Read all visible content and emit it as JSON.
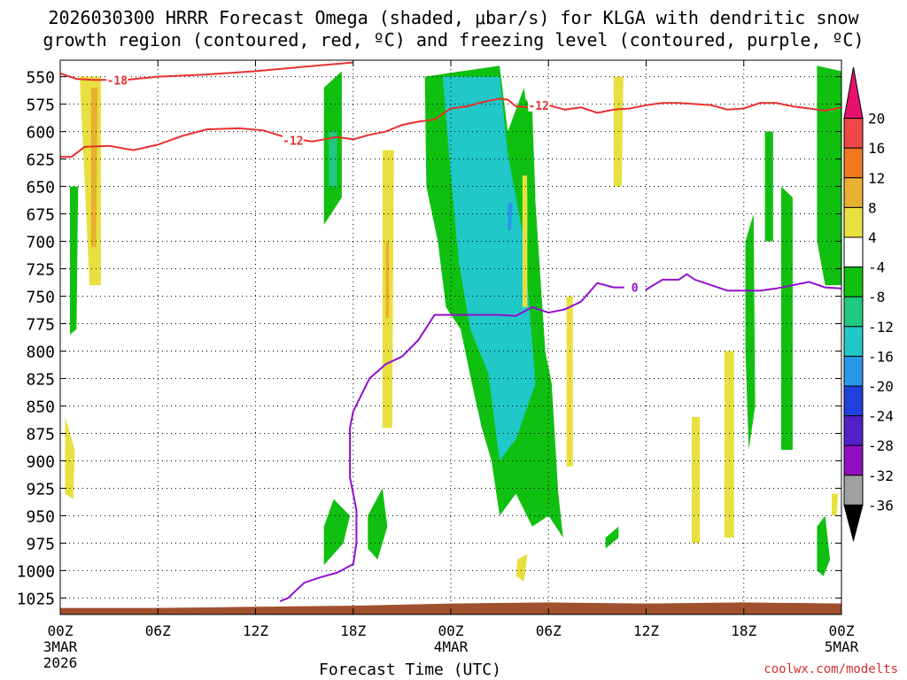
{
  "title": "2026030300 HRRR Forecast Omega (shaded, μbar/s) for KLGA with dendritic snow\ngrowth region (contoured, red, ºC) and freezing level (contoured, purple, ºC)",
  "credit": "coolwx.com/modelts",
  "chart_data": {
    "type": "heatmap",
    "title": "2026030300 HRRR Forecast Omega (shaded, μbar/s) for KLGA with dendritic snow growth region (contoured, red, ºC) and freezing level (contoured, purple, ºC)",
    "xlabel": "Forecast Time (UTC)",
    "ylabel": "",
    "x_ticks": [
      {
        "hour": 0,
        "label": "00Z",
        "sub": "3MAR",
        "sub2": "2026"
      },
      {
        "hour": 6,
        "label": "06Z"
      },
      {
        "hour": 12,
        "label": "12Z"
      },
      {
        "hour": 18,
        "label": "18Z"
      },
      {
        "hour": 24,
        "label": "00Z",
        "sub": "4MAR"
      },
      {
        "hour": 30,
        "label": "06Z"
      },
      {
        "hour": 36,
        "label": "12Z"
      },
      {
        "hour": 42,
        "label": "18Z"
      },
      {
        "hour": 48,
        "label": "00Z",
        "sub": "5MAR"
      }
    ],
    "xlim": [
      0,
      48
    ],
    "y_ticks": [
      550,
      575,
      600,
      625,
      650,
      675,
      700,
      725,
      750,
      775,
      800,
      825,
      850,
      875,
      900,
      925,
      950,
      975,
      1000,
      1025
    ],
    "ylim": [
      535,
      1040
    ],
    "grid": true,
    "colorbar": {
      "labels": [
        "20",
        "16",
        "12",
        "8",
        "4",
        "-4",
        "-8",
        "-12",
        "-16",
        "-20",
        "-24",
        "-28",
        "-32",
        "-36"
      ],
      "colors": [
        "#e8106e",
        "#f04848",
        "#f07820",
        "#e8b030",
        "#e8e040",
        "#ffffff",
        "#10c010",
        "#20c880",
        "#20c8c8",
        "#2898e8",
        "#2040e0",
        "#5020c8",
        "#9010c0",
        "#a0a0a0",
        "#000000"
      ]
    },
    "contours": {
      "dendritic_red": [
        {
          "label": "-18",
          "points": [
            [
              0,
              547
            ],
            [
              1,
              552
            ],
            [
              2,
              553
            ],
            [
              4,
              553
            ],
            [
              6,
              550
            ],
            [
              9,
              548
            ],
            [
              12,
              545
            ],
            [
              15,
              541
            ],
            [
              18,
              537
            ]
          ]
        },
        {
          "label": "-12",
          "points": [
            [
              0,
              623
            ],
            [
              0.7,
              623
            ],
            [
              1.5,
              614
            ],
            [
              3,
              613
            ],
            [
              4.5,
              617
            ],
            [
              6,
              612
            ],
            [
              7.5,
              604
            ],
            [
              9,
              598
            ],
            [
              11,
              597
            ],
            [
              12.5,
              599
            ],
            [
              14,
              606
            ],
            [
              15.5,
              609
            ],
            [
              17,
              605
            ],
            [
              18,
              607
            ],
            [
              19,
              603
            ],
            [
              20,
              600
            ],
            [
              21,
              594
            ],
            [
              22,
              591
            ],
            [
              23,
              589
            ],
            [
              24,
              579
            ],
            [
              25,
              577
            ],
            [
              26,
              573
            ],
            [
              27,
              570
            ],
            [
              27.5,
              571
            ],
            [
              28,
              577
            ],
            [
              29,
              578
            ],
            [
              29.5,
              575
            ],
            [
              30,
              576
            ],
            [
              31,
              580
            ],
            [
              32,
              578
            ],
            [
              33,
              583
            ],
            [
              34,
              580
            ],
            [
              35,
              579
            ],
            [
              36,
              576
            ],
            [
              37,
              574
            ],
            [
              38,
              574
            ],
            [
              40,
              576
            ],
            [
              41,
              580
            ],
            [
              42,
              579
            ],
            [
              43,
              574
            ],
            [
              44,
              574
            ],
            [
              45,
              577
            ],
            [
              46,
              579
            ],
            [
              47,
              581
            ],
            [
              48,
              578
            ]
          ]
        }
      ],
      "freezing_purple": [
        {
          "label": "0",
          "points": [
            [
              13.5,
              1028
            ],
            [
              14,
              1025
            ],
            [
              14.5,
              1018
            ],
            [
              15,
              1011
            ],
            [
              16,
              1006
            ],
            [
              17,
              1002
            ],
            [
              18,
              994
            ],
            [
              18.2,
              975
            ],
            [
              18.2,
              945
            ],
            [
              17.8,
              915
            ],
            [
              17.8,
              870
            ],
            [
              18,
              855
            ],
            [
              19,
              825
            ],
            [
              20,
              812
            ],
            [
              21,
              805
            ],
            [
              22,
              790
            ],
            [
              23,
              767
            ],
            [
              24,
              767
            ],
            [
              27,
              767
            ],
            [
              28,
              768
            ],
            [
              29,
              760
            ],
            [
              30,
              765
            ],
            [
              31,
              762
            ],
            [
              32,
              755
            ],
            [
              33,
              738
            ],
            [
              34,
              742
            ],
            [
              35,
              742
            ],
            [
              36,
              744
            ],
            [
              37,
              735
            ],
            [
              38,
              735
            ],
            [
              38.5,
              730
            ],
            [
              39,
              735
            ],
            [
              40,
              740
            ],
            [
              41,
              745
            ],
            [
              42,
              745
            ],
            [
              43,
              745
            ],
            [
              44,
              743
            ],
            [
              45,
              740
            ],
            [
              46,
              737
            ],
            [
              47,
              742
            ],
            [
              48,
              743
            ]
          ]
        }
      ]
    },
    "shading": [
      {
        "value": 6,
        "t": [
          [
            1.2,
            550
          ],
          [
            2.5,
            550
          ],
          [
            2.5,
            740
          ],
          [
            1.8,
            740
          ]
        ]
      },
      {
        "value": 10,
        "t": [
          [
            1.9,
            560
          ],
          [
            2.3,
            560
          ],
          [
            2.2,
            705
          ],
          [
            1.9,
            705
          ]
        ]
      },
      {
        "value": 6,
        "t": [
          [
            0.3,
            860
          ],
          [
            0.9,
            890
          ],
          [
            0.8,
            935
          ],
          [
            0.3,
            930
          ]
        ]
      },
      {
        "value": -6,
        "t": [
          [
            0.6,
            650
          ],
          [
            1.1,
            650
          ],
          [
            1.0,
            780
          ],
          [
            0.6,
            785
          ]
        ]
      },
      {
        "value": 6,
        "t": [
          [
            19.8,
            617
          ],
          [
            20.5,
            617
          ],
          [
            20.4,
            870
          ],
          [
            19.8,
            870
          ]
        ]
      },
      {
        "value": 10,
        "t": [
          [
            20.0,
            700
          ],
          [
            20.2,
            700
          ],
          [
            20.2,
            770
          ],
          [
            20.0,
            770
          ]
        ]
      },
      {
        "value": -6,
        "t": [
          [
            16.2,
            560
          ],
          [
            17.3,
            545
          ],
          [
            17.3,
            660
          ],
          [
            16.2,
            685
          ]
        ]
      },
      {
        "value": -10,
        "t": [
          [
            16.5,
            600
          ],
          [
            17.0,
            600
          ],
          [
            17.0,
            650
          ],
          [
            16.5,
            650
          ]
        ]
      },
      {
        "value": -6,
        "t": [
          [
            16.2,
            960
          ],
          [
            16.8,
            935
          ],
          [
            17.8,
            950
          ],
          [
            17.4,
            975
          ],
          [
            16.2,
            995
          ]
        ]
      },
      {
        "value": -6,
        "t": [
          [
            18.9,
            950
          ],
          [
            19.8,
            925
          ],
          [
            20.1,
            960
          ],
          [
            19.5,
            990
          ],
          [
            18.9,
            980
          ]
        ]
      },
      {
        "value": -6,
        "t": [
          [
            22.4,
            550
          ],
          [
            27.0,
            540
          ],
          [
            27.5,
            600
          ],
          [
            28.5,
            560
          ],
          [
            29.0,
            620
          ],
          [
            29.8,
            800
          ],
          [
            30.2,
            830
          ],
          [
            30.6,
            930
          ],
          [
            30.9,
            970
          ],
          [
            30.0,
            950
          ],
          [
            29.0,
            960
          ],
          [
            28.0,
            930
          ],
          [
            27.0,
            950
          ],
          [
            26.5,
            900
          ],
          [
            25.9,
            870
          ],
          [
            25.3,
            830
          ],
          [
            24.6,
            780
          ],
          [
            23.7,
            760
          ],
          [
            23.2,
            700
          ],
          [
            22.5,
            650
          ]
        ]
      },
      {
        "value": -12,
        "t": [
          [
            23.5,
            550
          ],
          [
            27.0,
            550
          ],
          [
            27.5,
            620
          ],
          [
            28.5,
            700
          ],
          [
            29.2,
            830
          ],
          [
            28.0,
            880
          ],
          [
            27.0,
            900
          ],
          [
            26.3,
            820
          ],
          [
            25.2,
            780
          ],
          [
            24.5,
            720
          ],
          [
            24.0,
            640
          ]
        ]
      },
      {
        "value": -14,
        "t": [
          [
            24.3,
            550
          ],
          [
            26.8,
            550
          ],
          [
            27.3,
            640
          ],
          [
            28.1,
            780
          ],
          [
            27.0,
            830
          ],
          [
            26.2,
            780
          ],
          [
            25.5,
            720
          ],
          [
            25.0,
            660
          ]
        ]
      },
      {
        "value": -18,
        "t": [
          [
            27.5,
            665
          ],
          [
            27.8,
            665
          ],
          [
            27.7,
            690
          ],
          [
            27.5,
            690
          ]
        ]
      },
      {
        "value": 6,
        "t": [
          [
            28.4,
            640
          ],
          [
            28.7,
            640
          ],
          [
            28.7,
            760
          ],
          [
            28.4,
            760
          ]
        ]
      },
      {
        "value": 6,
        "t": [
          [
            28.1,
            990
          ],
          [
            28.7,
            985
          ],
          [
            28.5,
            1010
          ],
          [
            28.0,
            1005
          ]
        ]
      },
      {
        "value": -6,
        "t": [
          [
            28.6,
            570
          ],
          [
            29.0,
            580
          ],
          [
            29.2,
            660
          ],
          [
            28.7,
            660
          ]
        ]
      },
      {
        "value": 6,
        "t": [
          [
            31.1,
            750
          ],
          [
            31.5,
            750
          ],
          [
            31.5,
            905
          ],
          [
            31.1,
            905
          ]
        ]
      },
      {
        "value": 6,
        "t": [
          [
            34.0,
            550
          ],
          [
            34.6,
            550
          ],
          [
            34.5,
            650
          ],
          [
            34.0,
            650
          ]
        ]
      },
      {
        "value": -6,
        "t": [
          [
            33.5,
            970
          ],
          [
            34.3,
            960
          ],
          [
            34.3,
            970
          ],
          [
            33.5,
            980
          ]
        ]
      },
      {
        "value": 6,
        "t": [
          [
            38.8,
            860
          ],
          [
            39.3,
            860
          ],
          [
            39.3,
            975
          ],
          [
            38.8,
            975
          ]
        ]
      },
      {
        "value": 6,
        "t": [
          [
            40.8,
            800
          ],
          [
            41.4,
            800
          ],
          [
            41.4,
            970
          ],
          [
            40.8,
            970
          ]
        ]
      },
      {
        "value": -6,
        "t": [
          [
            42.1,
            700
          ],
          [
            42.6,
            675
          ],
          [
            42.7,
            850
          ],
          [
            42.3,
            890
          ],
          [
            42.1,
            800
          ]
        ]
      },
      {
        "value": -6,
        "t": [
          [
            43.3,
            600
          ],
          [
            43.8,
            600
          ],
          [
            43.8,
            700
          ],
          [
            43.3,
            700
          ]
        ]
      },
      {
        "value": -6,
        "t": [
          [
            44.3,
            650
          ],
          [
            45.0,
            660
          ],
          [
            45.0,
            890
          ],
          [
            44.3,
            890
          ]
        ]
      },
      {
        "value": -6,
        "t": [
          [
            46.5,
            540
          ],
          [
            48,
            545
          ],
          [
            48,
            740
          ],
          [
            47.0,
            740
          ],
          [
            46.5,
            700
          ]
        ]
      },
      {
        "value": -6,
        "t": [
          [
            46.5,
            960
          ],
          [
            47.0,
            950
          ],
          [
            47.3,
            990
          ],
          [
            46.9,
            1005
          ],
          [
            46.5,
            1000
          ]
        ]
      },
      {
        "value": 6,
        "t": [
          [
            47.4,
            930
          ],
          [
            47.8,
            930
          ],
          [
            47.7,
            950
          ],
          [
            47.4,
            950
          ]
        ]
      }
    ],
    "ground": {
      "color": "#a0502c",
      "points": [
        [
          0,
          1034
        ],
        [
          6,
          1034
        ],
        [
          12,
          1033
        ],
        [
          18,
          1032
        ],
        [
          24,
          1030
        ],
        [
          30,
          1029
        ],
        [
          36,
          1030
        ],
        [
          42,
          1029
        ],
        [
          48,
          1030
        ]
      ]
    }
  }
}
